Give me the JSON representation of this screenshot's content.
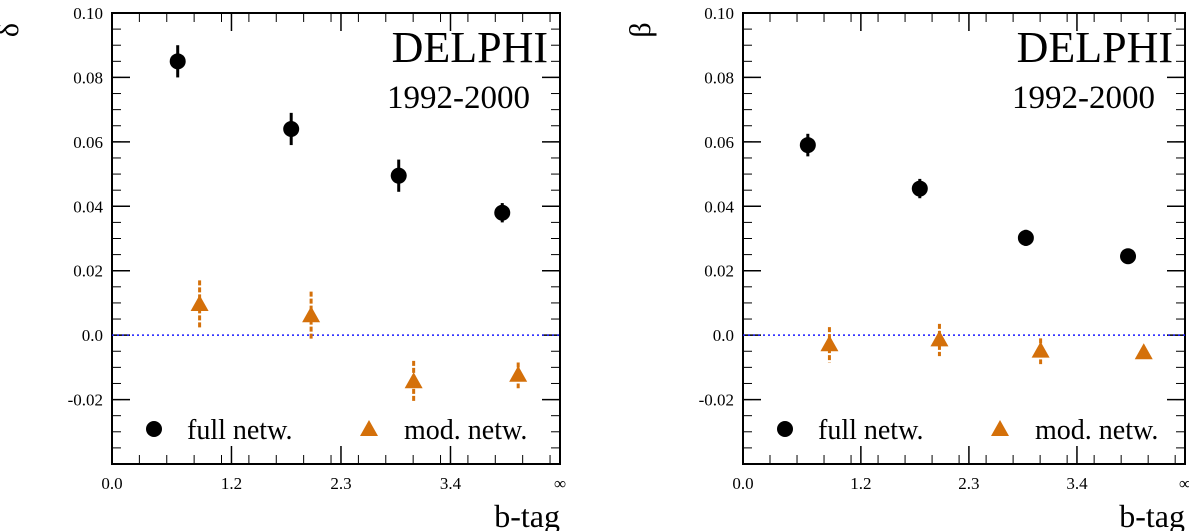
{
  "chart_data": [
    {
      "type": "scatter",
      "ylabel": "δ",
      "xlabel": "b-tag",
      "annotation_title": "DELPHI",
      "annotation_subtitle": "1992-2000",
      "x_ticks": [
        "0.0",
        "1.2",
        "2.3",
        "3.4",
        "∞"
      ],
      "y_ticks": [
        "0.10",
        "0.08",
        "0.06",
        "0.04",
        "0.02",
        "0.0",
        "-0.02"
      ],
      "xlim": [
        0,
        4.5
      ],
      "ylim": [
        -0.04,
        0.1
      ],
      "reference_line_y": 0,
      "legend": {
        "placement": "bottom",
        "entries": [
          "full netw.",
          "mod. netw."
        ]
      },
      "series": [
        {
          "name": "full netw.",
          "marker": "circle",
          "color": "#000000",
          "x": [
            0.66,
            1.8,
            2.88,
            3.92
          ],
          "y": [
            0.085,
            0.064,
            0.0495,
            0.038
          ],
          "err": [
            0.005,
            0.005,
            0.005,
            0.003
          ]
        },
        {
          "name": "mod. netw.",
          "marker": "triangle",
          "color": "#d4700a",
          "x": [
            0.88,
            2.0,
            3.03,
            4.08
          ],
          "y": [
            0.0095,
            0.006,
            -0.0145,
            -0.0125
          ],
          "err": [
            0.0075,
            0.0075,
            0.0065,
            0.004
          ]
        }
      ]
    },
    {
      "type": "scatter",
      "ylabel": "β",
      "xlabel": "b-tag",
      "annotation_title": "DELPHI",
      "annotation_subtitle": "1992-2000",
      "x_ticks": [
        "0.0",
        "1.2",
        "2.3",
        "3.4",
        "∞"
      ],
      "y_ticks": [
        "0.10",
        "0.08",
        "0.06",
        "0.04",
        "0.02",
        "0.0",
        "-0.02"
      ],
      "xlim": [
        0,
        4.5
      ],
      "ylim": [
        -0.04,
        0.1
      ],
      "reference_line_y": 0,
      "legend": {
        "placement": "bottom",
        "entries": [
          "full netw.",
          "mod. netw."
        ]
      },
      "series": [
        {
          "name": "full netw.",
          "marker": "circle",
          "color": "#000000",
          "x": [
            0.66,
            1.8,
            2.88,
            3.92
          ],
          "y": [
            0.059,
            0.0455,
            0.0302,
            0.0245
          ],
          "err": [
            0.0035,
            0.003,
            0.0025,
            0.0015
          ]
        },
        {
          "name": "mod. netw.",
          "marker": "triangle",
          "color": "#d4700a",
          "x": [
            0.88,
            2.0,
            3.03,
            4.08
          ],
          "y": [
            -0.003,
            -0.0015,
            -0.005,
            -0.0055
          ],
          "err": [
            0.0055,
            0.005,
            0.004,
            0.0015
          ]
        }
      ]
    }
  ]
}
